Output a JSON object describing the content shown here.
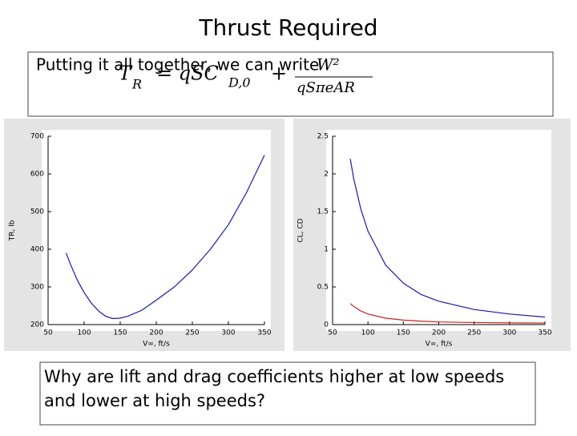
{
  "title": "Thrust Required",
  "intro": "Putting it all together, we can write",
  "formula": {
    "lhs": "T",
    "lhs_sub": "R",
    "first": "= qSC",
    "first_sub": "D,0",
    "plus": "+",
    "num": "W²",
    "den": "qSπeAR"
  },
  "question": "Why are lift and drag coefficients higher at low speeds and lower at high speeds?",
  "chart_data": [
    {
      "type": "line",
      "xlabel": "V∞, ft/s",
      "ylabel": "TR, lb",
      "x": [
        75,
        80,
        90,
        100,
        110,
        120,
        130,
        140,
        150,
        160,
        180,
        200,
        225,
        250,
        275,
        300,
        325,
        350
      ],
      "series": [
        {
          "name": "TR",
          "color": "#1a1aa8",
          "values": [
            390,
            365,
            320,
            285,
            257,
            236,
            222,
            216,
            217,
            222,
            238,
            265,
            300,
            345,
            400,
            465,
            550,
            650
          ]
        }
      ],
      "xlim": [
        50,
        350
      ],
      "xticks": [
        50,
        100,
        150,
        200,
        250,
        300,
        350
      ],
      "ylim": [
        200,
        700
      ],
      "yticks": [
        200,
        300,
        400,
        500,
        600,
        700
      ]
    },
    {
      "type": "line",
      "xlabel": "V∞, ft/s",
      "ylabel": "CL, CD",
      "x": [
        75,
        80,
        90,
        100,
        125,
        150,
        175,
        200,
        250,
        300,
        350
      ],
      "series": [
        {
          "name": "CL",
          "color": "#1a1aa8",
          "values": [
            2.2,
            1.93,
            1.53,
            1.24,
            0.79,
            0.55,
            0.4,
            0.31,
            0.2,
            0.14,
            0.1
          ]
        },
        {
          "name": "CD",
          "color": "#cc2020",
          "values": [
            0.28,
            0.24,
            0.18,
            0.14,
            0.085,
            0.06,
            0.045,
            0.035,
            0.027,
            0.023,
            0.02
          ]
        }
      ],
      "xlim": [
        50,
        350
      ],
      "xticks": [
        50,
        100,
        150,
        200,
        250,
        300,
        350
      ],
      "ylim": [
        0,
        2.5
      ],
      "yticks": [
        0,
        0.5,
        1,
        1.5,
        2,
        2.5
      ]
    }
  ]
}
